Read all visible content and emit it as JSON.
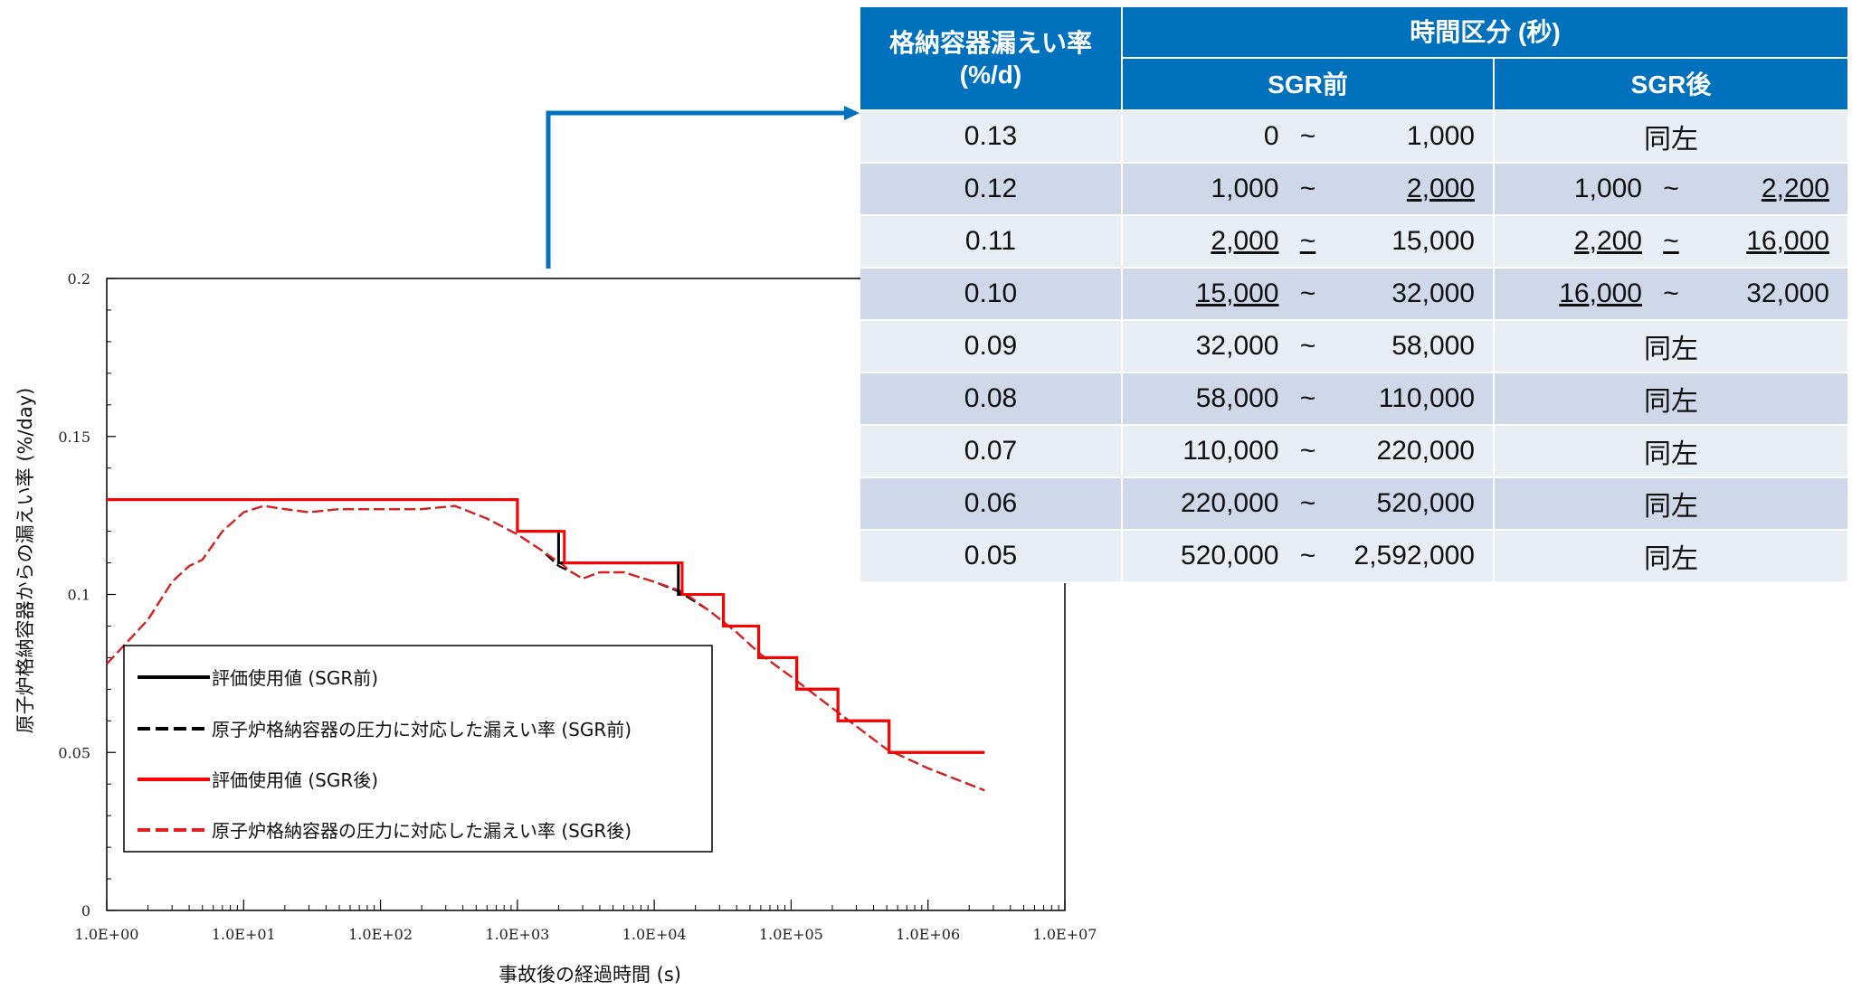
{
  "chart_data": {
    "type": "line",
    "xlabel": "事故後の経過時間 (s)",
    "ylabel": "原子炉格納容器からの漏えい率 (%/day)",
    "xscale": "log",
    "xlim": [
      1,
      10000000
    ],
    "ylim": [
      0,
      0.2
    ],
    "x_tick_labels": [
      "1.0E+00",
      "1.0E+01",
      "1.0E+02",
      "1.0E+03",
      "1.0E+04",
      "1.0E+05",
      "1.0E+06",
      "1.0E+07"
    ],
    "y_tick_labels": [
      "0",
      "0.05",
      "0.1",
      "0.15",
      "0.2"
    ],
    "y_ticks": [
      0,
      0.05,
      0.1,
      0.15,
      0.2
    ],
    "legend_position": "lower-left",
    "series": [
      {
        "name": "評価使用値 (SGR前)",
        "color": "#000000",
        "dash": false,
        "points": [
          [
            1,
            0.13
          ],
          [
            1000,
            0.13
          ],
          [
            1000,
            0.12
          ],
          [
            2000,
            0.12
          ],
          [
            2000,
            0.11
          ],
          [
            15000,
            0.11
          ],
          [
            15000,
            0.1
          ],
          [
            32000,
            0.1
          ],
          [
            32000,
            0.09
          ],
          [
            58000,
            0.09
          ],
          [
            58000,
            0.08
          ],
          [
            110000,
            0.08
          ],
          [
            110000,
            0.07
          ],
          [
            220000,
            0.07
          ],
          [
            220000,
            0.06
          ],
          [
            520000,
            0.06
          ],
          [
            520000,
            0.05
          ],
          [
            2592000,
            0.05
          ]
        ]
      },
      {
        "name": "原子炉格納容器の圧力に対応した漏えい率 (SGR前)",
        "color": "#000000",
        "dash": true,
        "points": [
          [
            1,
            0.078
          ],
          [
            2,
            0.092
          ],
          [
            3,
            0.104
          ],
          [
            4,
            0.109
          ],
          [
            5,
            0.111
          ],
          [
            7,
            0.12
          ],
          [
            10,
            0.126
          ],
          [
            14,
            0.128
          ],
          [
            20,
            0.127
          ],
          [
            30,
            0.126
          ],
          [
            50,
            0.127
          ],
          [
            100,
            0.127
          ],
          [
            200,
            0.127
          ],
          [
            350,
            0.128
          ],
          [
            600,
            0.124
          ],
          [
            1000,
            0.119
          ],
          [
            1500,
            0.114
          ],
          [
            2000,
            0.109
          ],
          [
            2500,
            0.107
          ],
          [
            3000,
            0.105
          ],
          [
            4000,
            0.107
          ],
          [
            6000,
            0.107
          ],
          [
            10000,
            0.104
          ],
          [
            15000,
            0.101
          ],
          [
            25000,
            0.095
          ],
          [
            40000,
            0.088
          ],
          [
            60000,
            0.081
          ],
          [
            100000,
            0.074
          ],
          [
            200000,
            0.064
          ],
          [
            500000,
            0.051
          ],
          [
            1000000,
            0.045
          ],
          [
            2592000,
            0.038
          ]
        ]
      },
      {
        "name": "評価使用値 (SGR後)",
        "color": "#ff0000",
        "dash": false,
        "points": [
          [
            1,
            0.13
          ],
          [
            1000,
            0.13
          ],
          [
            1000,
            0.12
          ],
          [
            2200,
            0.12
          ],
          [
            2200,
            0.11
          ],
          [
            16000,
            0.11
          ],
          [
            16000,
            0.1
          ],
          [
            32000,
            0.1
          ],
          [
            32000,
            0.09
          ],
          [
            58000,
            0.09
          ],
          [
            58000,
            0.08
          ],
          [
            110000,
            0.08
          ],
          [
            110000,
            0.07
          ],
          [
            220000,
            0.07
          ],
          [
            220000,
            0.06
          ],
          [
            520000,
            0.06
          ],
          [
            520000,
            0.05
          ],
          [
            2592000,
            0.05
          ]
        ]
      },
      {
        "name": "原子炉格納容器の圧力に対応した漏えい率 (SGR後)",
        "color": "#e02020",
        "dash": true,
        "points": [
          [
            1,
            0.078
          ],
          [
            2,
            0.092
          ],
          [
            3,
            0.104
          ],
          [
            4,
            0.109
          ],
          [
            5,
            0.111
          ],
          [
            7,
            0.12
          ],
          [
            10,
            0.126
          ],
          [
            14,
            0.128
          ],
          [
            20,
            0.127
          ],
          [
            30,
            0.126
          ],
          [
            50,
            0.127
          ],
          [
            100,
            0.127
          ],
          [
            200,
            0.127
          ],
          [
            350,
            0.128
          ],
          [
            600,
            0.124
          ],
          [
            1000,
            0.119
          ],
          [
            1500,
            0.114
          ],
          [
            2200,
            0.109
          ],
          [
            2500,
            0.107
          ],
          [
            3000,
            0.105
          ],
          [
            4000,
            0.107
          ],
          [
            6000,
            0.107
          ],
          [
            10000,
            0.104
          ],
          [
            16000,
            0.101
          ],
          [
            25000,
            0.095
          ],
          [
            40000,
            0.088
          ],
          [
            60000,
            0.081
          ],
          [
            100000,
            0.074
          ],
          [
            200000,
            0.064
          ],
          [
            500000,
            0.051
          ],
          [
            1000000,
            0.045
          ],
          [
            2592000,
            0.038
          ]
        ]
      }
    ]
  },
  "table": {
    "header_rate_line1": "格納容器漏えい率",
    "header_rate_line2": "(%/d)",
    "header_interval": "時間区分 (秒)",
    "header_before": "SGR前",
    "header_after": "SGR後",
    "tilde": "~",
    "rows": [
      {
        "rate": "0.13",
        "before_from": "0",
        "before_to": "1,000",
        "after_same": "同左"
      },
      {
        "rate": "0.12",
        "before_from": "1,000",
        "before_to": "2,000",
        "after_from": "1,000",
        "after_to": "2,200"
      },
      {
        "rate": "0.11",
        "before_from": "2,000",
        "before_to": "15,000",
        "after_from": "2,200",
        "after_to": "16,000"
      },
      {
        "rate": "0.10",
        "before_from": "15,000",
        "before_to": "32,000",
        "after_from": "16,000",
        "after_to": "32,000"
      },
      {
        "rate": "0.09",
        "before_from": "32,000",
        "before_to": "58,000",
        "after_same": "同左"
      },
      {
        "rate": "0.08",
        "before_from": "58,000",
        "before_to": "110,000",
        "after_same": "同左"
      },
      {
        "rate": "0.07",
        "before_from": "110,000",
        "before_to": "220,000",
        "after_same": "同左"
      },
      {
        "rate": "0.06",
        "before_from": "220,000",
        "before_to": "520,000",
        "after_same": "同左"
      },
      {
        "rate": "0.05",
        "before_from": "520,000",
        "before_to": "2,592,000",
        "after_same": "同左"
      }
    ]
  },
  "colors": {
    "accent_blue": "#0071bd",
    "row_light": "#e9edf4",
    "row_dark": "#cfd8e9",
    "series_black": "#000000",
    "series_red": "#ff0000"
  }
}
